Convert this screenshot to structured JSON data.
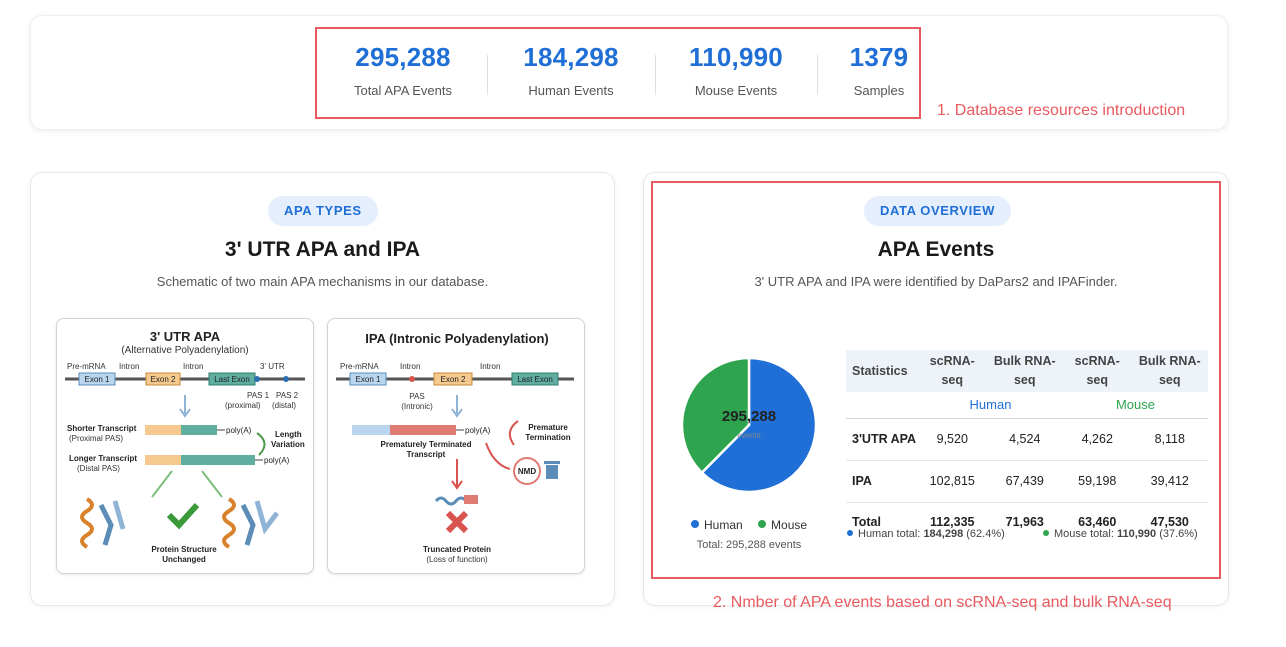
{
  "stats": [
    {
      "value": "295,288",
      "label": "Total APA Events"
    },
    {
      "value": "184,298",
      "label": "Human Events"
    },
    {
      "value": "110,990",
      "label": "Mouse Events"
    },
    {
      "value": "1379",
      "label": "Samples"
    }
  ],
  "annotations": {
    "first": "1. Database resources introduction",
    "second": "2. Nmber of APA events based on scRNA-seq and bulk RNA-seq"
  },
  "left_panel": {
    "badge": "APA TYPES",
    "title": "3' UTR APA and IPA",
    "subtitle": "Schematic of two main APA mechanisms in our database.",
    "utr": {
      "title": "3' UTR APA",
      "subtitle": "(Alternative Polyadenylation)",
      "premrna": "Pre-mRNA",
      "exon1": "Exon 1",
      "intron": "Intron",
      "exon2": "Exon 2",
      "last_exon": "Last Exon",
      "utr3": "3' UTR",
      "pas1": "PAS 1",
      "proximal": "(proximal)",
      "pas2": "PAS 2",
      "distal": "(distal)",
      "shorter": "Shorter Transcript",
      "shorter_sub": "(Proximal PAS)",
      "longer": "Longer Transcript",
      "longer_sub": "(Distal PAS)",
      "polya": "poly(A)",
      "length": "Length",
      "variation": "Variation",
      "protein1": "Protein Structure",
      "protein2": "Unchanged"
    },
    "ipa": {
      "title": "IPA (Intronic Polyadenylation)",
      "premrna": "Pre-mRNA",
      "exon1": "Exon 1",
      "intron": "Intron",
      "exon2": "Exon 2",
      "last_exon": "Last Exon",
      "pas": "PAS",
      "intronic": "(Intronic)",
      "polya": "poly(A)",
      "premature1": "Premature",
      "premature2": "Termination",
      "pt1": "Prematurely Terminated",
      "pt2": "Transcript",
      "nmd": "NMD",
      "trunc1": "Truncated Protein",
      "trunc2": "(Loss of function)"
    }
  },
  "right_panel": {
    "badge": "DATA OVERVIEW",
    "title": "APA Events",
    "subtitle": "3' UTR APA and IPA were identified by DaPars2 and IPAFinder.",
    "pie_center_value": "295,288",
    "pie_center_unit": "events",
    "legend_human": "Human",
    "legend_mouse": "Mouse",
    "total_text": "Total: 295,288 events",
    "table": {
      "header": [
        "Statistics",
        "scRNA-seq",
        "Bulk RNA-seq",
        "scRNA-seq",
        "Bulk RNA-seq"
      ],
      "species_human": "Human",
      "species_mouse": "Mouse",
      "rows": [
        {
          "label": "3'UTR APA",
          "values": [
            "9,520",
            "4,524",
            "4,262",
            "8,118"
          ]
        },
        {
          "label": "IPA",
          "values": [
            "102,815",
            "67,439",
            "59,198",
            "39,412"
          ]
        },
        {
          "label": "Total",
          "values": [
            "112,335",
            "71,963",
            "63,460",
            "47,530"
          ]
        }
      ]
    },
    "human_total_label": "Human total:",
    "human_total_value": "184,298",
    "human_total_pct": "(62.4%)",
    "mouse_total_label": "Mouse total:",
    "mouse_total_value": "110,990",
    "mouse_total_pct": "(37.6%)"
  },
  "colors": {
    "human": "#1f6fd6",
    "mouse": "#2ea44f",
    "annotation": "#e85a5f"
  },
  "chart_data": {
    "type": "pie",
    "categories": [
      "Human",
      "Mouse"
    ],
    "values": [
      184298,
      110990
    ],
    "title": "",
    "legend": "bottom"
  }
}
